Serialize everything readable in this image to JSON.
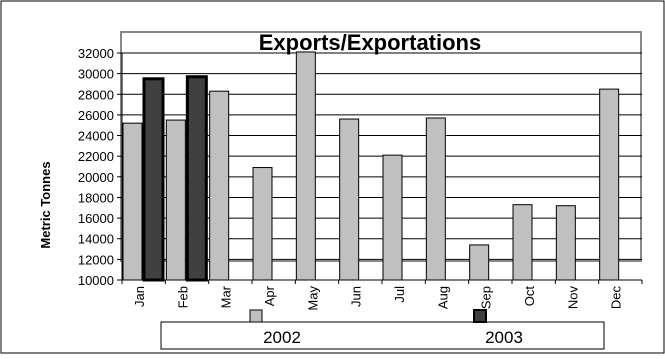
{
  "chart_data": {
    "type": "bar",
    "title": "Exports/Exportations",
    "ylabel": "Metric Tonnes",
    "xlabel": "",
    "categories": [
      "Jan",
      "Feb",
      "Mar",
      "Apr",
      "May",
      "Jun",
      "Jul",
      "Aug",
      "Sep",
      "Oct",
      "Nov",
      "Dec"
    ],
    "ylim": [
      10000,
      32000
    ],
    "yticks": [
      10000,
      12000,
      14000,
      16000,
      18000,
      20000,
      22000,
      24000,
      26000,
      28000,
      30000,
      32000
    ],
    "grid": true,
    "legend_position": "bottom",
    "series": [
      {
        "name": "2002",
        "color": "#c0c0c0",
        "values": [
          25200,
          25500,
          28300,
          20900,
          32100,
          25600,
          22100,
          25700,
          13400,
          17300,
          17200,
          28500
        ]
      },
      {
        "name": "2003",
        "color": "#404040",
        "values": [
          29500,
          29700,
          null,
          null,
          null,
          null,
          null,
          null,
          null,
          null,
          null,
          null
        ]
      }
    ]
  }
}
